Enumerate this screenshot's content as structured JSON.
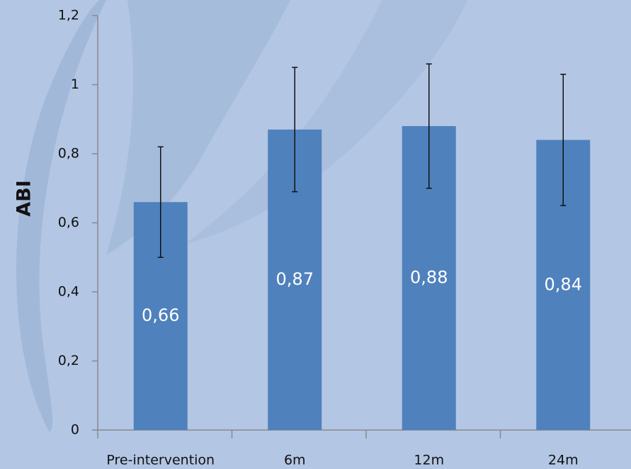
{
  "chart_data": {
    "type": "bar",
    "y_label": "ABI",
    "categories": [
      "Pre-intervention",
      "6m",
      "12m",
      "24m"
    ],
    "values": [
      0.66,
      0.87,
      0.88,
      0.84
    ],
    "value_labels": [
      "0,66",
      "0,87",
      "0,88",
      "0,84"
    ],
    "errors": [
      0.16,
      0.18,
      0.18,
      0.19
    ],
    "color": "#4f81bd",
    "ylim": [
      0,
      1.2
    ],
    "yticks": [
      0,
      {
        "value": 0.2,
        "label": "0,2"
      },
      {
        "value": 0.4,
        "label": "0,4"
      },
      {
        "value": 0.6,
        "label": "0,6"
      },
      {
        "value": 0.8,
        "label": "0,8"
      },
      1,
      {
        "value": 1.2,
        "label": "1,2"
      }
    ],
    "grid": false
  }
}
